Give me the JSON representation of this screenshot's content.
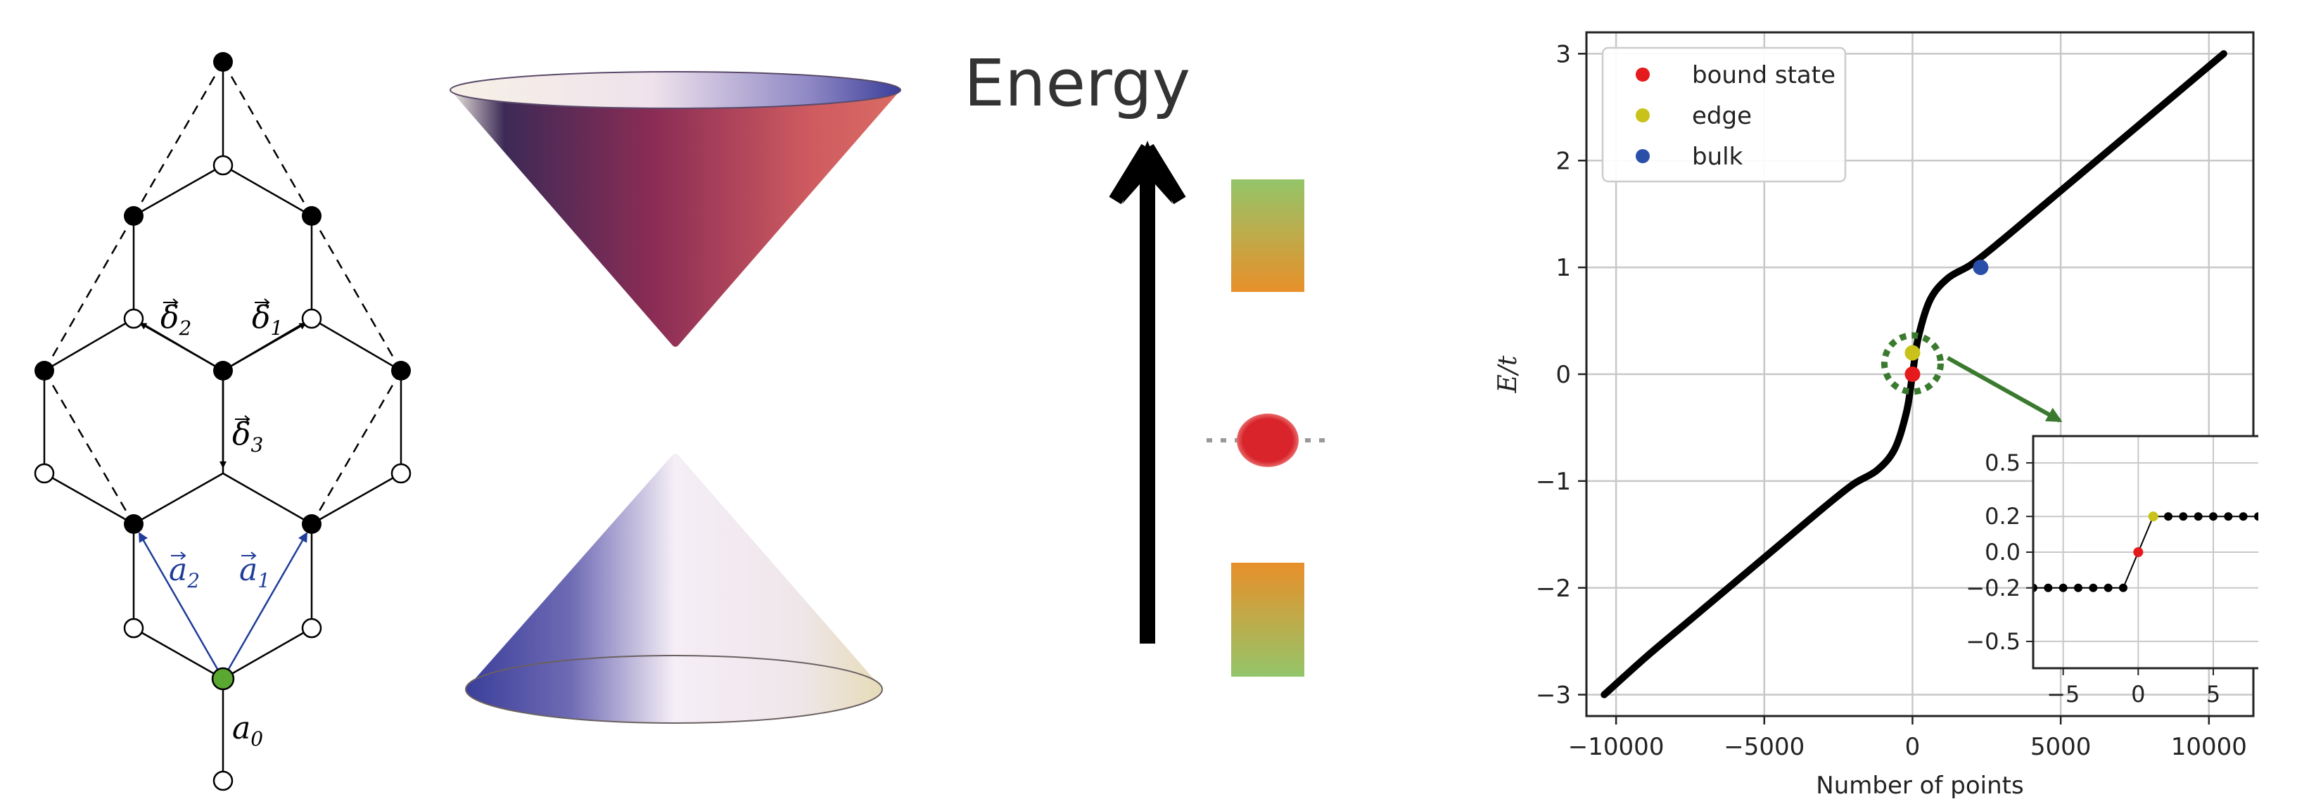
{
  "lattice": {
    "labels": {
      "delta1": "δ",
      "delta1_sub": "1",
      "delta2": "δ",
      "delta2_sub": "2",
      "delta3": "δ",
      "delta3_sub": "3",
      "a1": "a",
      "a1_sub": "1",
      "a2": "a",
      "a2_sub": "2",
      "a0": "a",
      "a0_sub": "0"
    },
    "colors": {
      "filled_site": "#000000",
      "open_site": "#ffffff",
      "special_site": "#5aa832",
      "lattice_vector": "#1f3d9a"
    }
  },
  "energy_diagram": {
    "label": "Energy",
    "colors": {
      "band_top": "#7da84a",
      "band_bottom": "#e8902a",
      "bound_state": "#d8242a"
    }
  },
  "chart_data": {
    "type": "line",
    "xlabel": "Number of points",
    "ylabel": "E/t",
    "xlim": [
      -11000,
      11500
    ],
    "ylim": [
      -3.2,
      3.2
    ],
    "xticks": [
      -10000,
      -5000,
      0,
      5000,
      10000
    ],
    "xtick_labels": [
      "−10000",
      "−5000",
      "0",
      "5000",
      "10000"
    ],
    "yticks": [
      -3,
      -2,
      -1,
      0,
      1,
      2,
      3
    ],
    "ytick_labels": [
      "−3",
      "−2",
      "−1",
      "0",
      "1",
      "2",
      "3"
    ],
    "grid": true,
    "legend_position": "top-left",
    "series": [
      {
        "color": "#000000",
        "x": [
          -10400,
          -9000,
          -7500,
          -6000,
          -4500,
          -3000,
          -2000,
          -1200,
          -600,
          -200,
          0,
          200,
          600,
          1200,
          2000,
          3000,
          4500,
          6000,
          7500,
          9000,
          10500
        ],
        "y": [
          -3.0,
          -2.65,
          -2.3,
          -1.95,
          -1.6,
          -1.25,
          -1.03,
          -0.9,
          -0.7,
          -0.35,
          0.0,
          0.35,
          0.7,
          0.9,
          1.03,
          1.25,
          1.6,
          1.95,
          2.3,
          2.65,
          3.0
        ]
      }
    ],
    "legend": [
      {
        "name": "bound state",
        "color": "#e41a1c"
      },
      {
        "name": "edge",
        "color": "#c8c21a"
      },
      {
        "name": "bulk",
        "color": "#2a4fa8"
      }
    ],
    "highlight_points": [
      {
        "x": 0,
        "y": 0.0,
        "color": "#e41a1c"
      },
      {
        "x": 0,
        "y": 0.2,
        "color": "#c8c21a"
      },
      {
        "x": 2300,
        "y": 1.0,
        "color": "#2a4fa8"
      }
    ],
    "zoom_ring_color": "#3a7a2e",
    "inset": {
      "xlim": [
        -7,
        8
      ],
      "ylim": [
        -0.65,
        0.65
      ],
      "xticks": [
        -5,
        0,
        5
      ],
      "xtick_labels": [
        "−5",
        "0",
        "5"
      ],
      "yticks": [
        -0.5,
        -0.2,
        0.0,
        0.2,
        0.5
      ],
      "ytick_labels": [
        "−0.5",
        "−0.2",
        "0.0",
        "0.2",
        "0.5"
      ],
      "grid": true,
      "points_low": {
        "x": [
          -7,
          -6,
          -5,
          -4,
          -3,
          -2,
          -1
        ],
        "y": -0.2,
        "color": "#000000"
      },
      "bound_point": {
        "x": 0,
        "y": 0.0,
        "color": "#e41a1c"
      },
      "edge_point": {
        "x": 1,
        "y": 0.2,
        "color": "#c8c21a"
      },
      "points_high": {
        "x": [
          2,
          3,
          4,
          5,
          6,
          7,
          8
        ],
        "y": 0.2,
        "color": "#000000"
      }
    }
  }
}
